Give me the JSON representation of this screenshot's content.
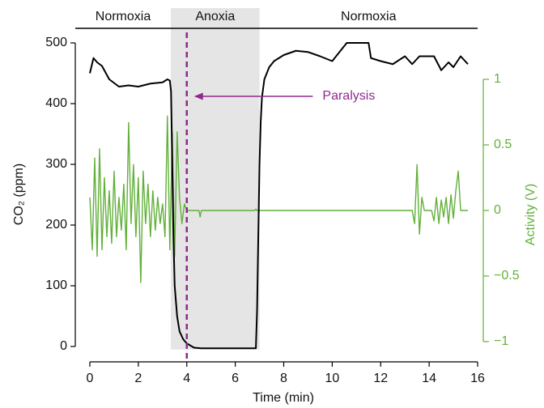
{
  "chart_data": {
    "type": "line",
    "xlabel": "Time (min)",
    "ylabel": "CO₂ (ppm)",
    "y2label": "Activity (V)",
    "xlim": [
      0,
      16
    ],
    "xticks": [
      0,
      2,
      4,
      6,
      8,
      10,
      12,
      14,
      16
    ],
    "ylim": [
      0,
      500
    ],
    "yticks": [
      0,
      100,
      200,
      300,
      400,
      500
    ],
    "y2lim": [
      -1,
      1
    ],
    "y2ticks": [
      {
        "value": -1,
        "label": "−1"
      },
      {
        "value": -0.5,
        "label": "−0.5"
      },
      0,
      0.5,
      1
    ],
    "phases": [
      {
        "label": "Normoxia",
        "start": -0.6,
        "end": 3.34
      },
      {
        "label": "Anoxia",
        "start": 3.34,
        "end": 7.0,
        "shaded": true
      },
      {
        "label": "Normoxia",
        "start": 7.0,
        "end": 16
      }
    ],
    "event_line": {
      "x": 4.0,
      "color": "#8e2a8e"
    },
    "annotation": {
      "text": "Paralysis",
      "x": 9.4,
      "y": 412,
      "arrow_to_x": 4.3,
      "color": "#8e2a8e"
    },
    "series": [
      {
        "name": "CO₂",
        "color": "#000000",
        "axis": "y",
        "x": [
          0,
          0.15,
          0.3,
          0.5,
          0.8,
          1.2,
          1.6,
          2.0,
          2.5,
          3.0,
          3.2,
          3.3,
          3.35,
          3.4,
          3.45,
          3.5,
          3.6,
          3.7,
          3.85,
          4.0,
          4.3,
          4.6,
          5.0,
          6.0,
          6.85,
          6.9,
          6.95,
          7.0,
          7.05,
          7.1,
          7.2,
          7.4,
          7.6,
          8.0,
          8.5,
          9.0,
          9.5,
          10.0,
          10.3,
          10.6,
          11.5,
          11.6,
          12.0,
          12.5,
          13.0,
          13.3,
          13.6,
          14.2,
          14.5,
          14.8,
          15.0,
          15.3,
          15.6
        ],
        "values": [
          450,
          475,
          468,
          462,
          440,
          428,
          430,
          428,
          433,
          435,
          440,
          438,
          420,
          300,
          180,
          100,
          50,
          25,
          12,
          5,
          -2,
          -3,
          -3,
          -3,
          -3,
          60,
          180,
          300,
          370,
          410,
          440,
          460,
          470,
          480,
          487,
          485,
          478,
          470,
          485,
          500,
          500,
          475,
          470,
          465,
          478,
          465,
          478,
          478,
          455,
          468,
          460,
          478,
          465
        ]
      },
      {
        "name": "Activity",
        "color": "#62b03a",
        "axis": "y2",
        "x": [
          0,
          0.1,
          0.2,
          0.3,
          0.4,
          0.5,
          0.6,
          0.7,
          0.8,
          0.9,
          1.0,
          1.1,
          1.2,
          1.3,
          1.4,
          1.5,
          1.6,
          1.7,
          1.8,
          1.9,
          2.0,
          2.1,
          2.2,
          2.3,
          2.4,
          2.5,
          2.6,
          2.7,
          2.8,
          2.9,
          3.0,
          3.1,
          3.2,
          3.3,
          3.4,
          3.5,
          3.6,
          3.7,
          3.8,
          3.9,
          4.0,
          4.5,
          4.55,
          4.6,
          6.8,
          6.85,
          6.9,
          13.3,
          13.4,
          13.5,
          13.6,
          13.7,
          13.8,
          14.1,
          14.2,
          14.3,
          14.4,
          14.5,
          14.6,
          14.7,
          14.8,
          14.9,
          15.0,
          15.1,
          15.2,
          15.3,
          15.6
        ],
        "values": [
          0.1,
          -0.3,
          0.4,
          -0.35,
          0.47,
          -0.3,
          0.25,
          -0.2,
          0.15,
          -0.25,
          0.3,
          -0.2,
          0.1,
          -0.15,
          0.2,
          -0.3,
          0.67,
          -0.1,
          0.35,
          -0.2,
          0.25,
          -0.55,
          0.3,
          -0.1,
          0.2,
          -0.2,
          0.15,
          -0.15,
          0.1,
          -0.1,
          0.05,
          -0.2,
          0.72,
          -0.3,
          0.6,
          -0.35,
          0.6,
          0.1,
          -0.1,
          0.05,
          0,
          0,
          -0.05,
          0,
          0,
          0.01,
          0,
          0,
          -0.1,
          0.35,
          -0.18,
          0.1,
          0,
          0,
          -0.08,
          0.1,
          -0.1,
          0.08,
          -0.05,
          0.1,
          -0.1,
          0.12,
          -0.06,
          0.15,
          0.3,
          0,
          0
        ]
      }
    ]
  }
}
